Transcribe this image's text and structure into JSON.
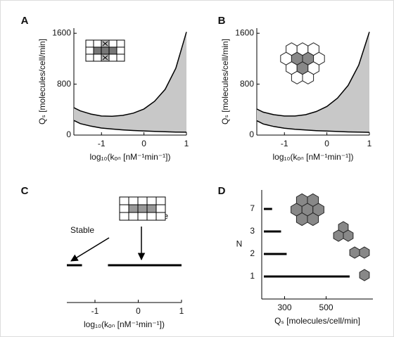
{
  "chart_data": [
    {
      "type": "area",
      "panel": "A",
      "x": [
        -1.65,
        -1.5,
        -1.25,
        -1,
        -0.75,
        -0.5,
        -0.25,
        0,
        0.25,
        0.5,
        0.75,
        1
      ],
      "series": [
        {
          "color": "#000000",
          "values": [
            230,
            180,
            140,
            110,
            95,
            82,
            72,
            65,
            58,
            52,
            48,
            45
          ]
        },
        {
          "color": "#000000",
          "values": [
            430,
            380,
            330,
            300,
            295,
            310,
            345,
            410,
            530,
            720,
            1050,
            1620
          ]
        }
      ],
      "fill": "#c8c8c8",
      "xlim": [
        -1.65,
        1
      ],
      "xticks": [
        -1,
        0,
        1
      ],
      "ylim": [
        0,
        1680
      ],
      "yticks": [
        0,
        800,
        1600
      ],
      "xlabel": "log₁₀(kₒₙ [nM⁻¹min⁻¹])",
      "ylabel": "Qₛ [molecules/cell/min]"
    },
    {
      "type": "area",
      "panel": "B",
      "x": [
        -1.65,
        -1.5,
        -1.25,
        -1,
        -0.75,
        -0.5,
        -0.25,
        0,
        0.25,
        0.5,
        0.75,
        1
      ],
      "series": [
        {
          "color": "#000000",
          "values": [
            225,
            175,
            135,
            108,
            92,
            80,
            70,
            63,
            56,
            50,
            46,
            43
          ]
        },
        {
          "color": "#000000",
          "values": [
            410,
            360,
            320,
            300,
            300,
            320,
            370,
            450,
            580,
            780,
            1100,
            1620
          ]
        }
      ],
      "fill": "#c8c8c8",
      "xlim": [
        -1.65,
        1
      ],
      "xticks": [
        -1,
        0,
        1
      ],
      "ylim": [
        0,
        1680
      ],
      "yticks": [
        0,
        800,
        1600
      ],
      "xlabel": "log₁₀(kₒₙ [nM⁻¹min⁻¹])",
      "ylabel": "Qₛ [molecules/cell/min]"
    },
    {
      "type": "interval",
      "panel": "C",
      "segments": [
        {
          "start": -1.65,
          "end": -1.3
        },
        {
          "start": -0.7,
          "end": 1
        }
      ],
      "color": "#000000",
      "annotations": [
        "Stable",
        "Stable"
      ],
      "xlim": [
        -1.65,
        1
      ],
      "xticks": [
        -1,
        0,
        1
      ],
      "xlabel": "log₁₀(kₒₙ [nM⁻¹min⁻¹])"
    },
    {
      "type": "bar",
      "orientation": "horizontal",
      "panel": "D",
      "categories": [
        "1",
        "2",
        "3",
        "7"
      ],
      "values": [
        613,
        310,
        283,
        240
      ],
      "color": "#000000",
      "xlim": [
        190,
        725
      ],
      "xticks": [
        300,
        500
      ],
      "xlabel": "Qₛ [molecules/cell/min]",
      "ylabel": "N"
    }
  ]
}
